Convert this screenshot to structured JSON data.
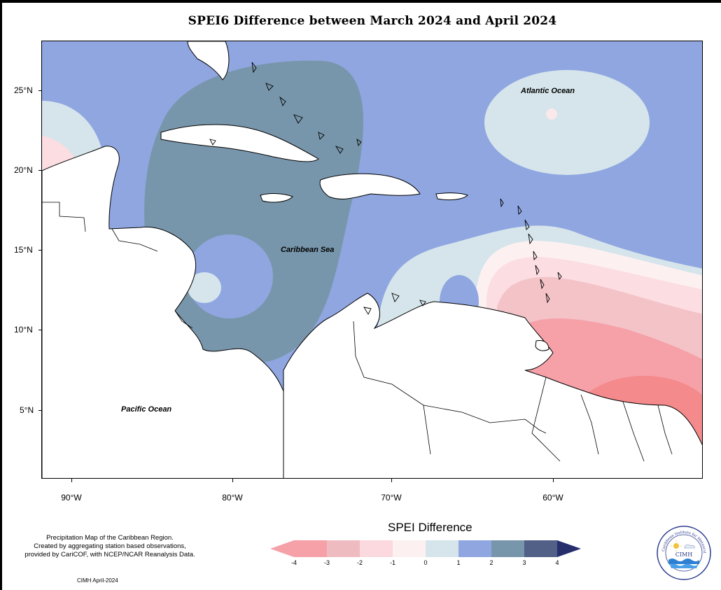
{
  "title": "SPEI6 Difference between March 2024 and April 2024",
  "map": {
    "latitude_labels": [
      "25°N",
      "20°N",
      "15°N",
      "10°N",
      "5°N"
    ],
    "longitude_labels": [
      "90°W",
      "80°W",
      "70°W",
      "60°W"
    ],
    "ocean_labels": {
      "atlantic": "Atlantic Ocean",
      "caribbean": "Caribbean Sea",
      "pacific": "Pacific Ocean"
    }
  },
  "legend": {
    "title": "SPEI Difference",
    "ticks": [
      "-4",
      "-3",
      "-2",
      "-1",
      "0",
      "1",
      "2",
      "3",
      "4"
    ],
    "colors": [
      "#f6a0a8",
      "#eebcc0",
      "#fbd9de",
      "#fdf0f1",
      "#d5e5eb",
      "#8fa6e0",
      "#7896ab",
      "#525f87"
    ],
    "extend_low_color": "#f6a0a8",
    "extend_high_color": "#262e6e"
  },
  "description": {
    "line1": "Precipitation Map of the Caribbean Region.",
    "line2": "Created by aggregating station based observations,",
    "line3": "provided by CariCOF, with NCEP/NCAR Reanalysis Data."
  },
  "credit": "CIMH April-2024",
  "logo": {
    "acronym": "CIMH",
    "ring_text": "Caribbean Institute for Meteorology and Hydrology",
    "icon": "cimh-logo"
  },
  "colors": {
    "sea_level_1": "#8fa6e0",
    "sea_level_2": "#7896ab",
    "pale_blue": "#d5e5eb",
    "pink_light": "#fbdde2",
    "pink_mid": "#f3c3c8",
    "red_mid": "#f6a0a8",
    "red_strong": "#f48a8c"
  }
}
